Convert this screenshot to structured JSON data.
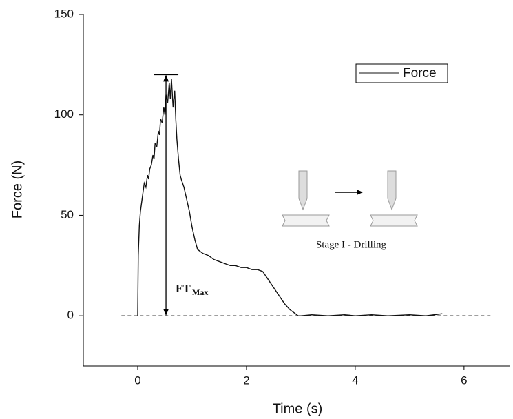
{
  "chart_data": {
    "type": "line",
    "xlabel": "Time (s)",
    "ylabel": "Force (N)",
    "x": [
      0,
      0.01,
      0.03,
      0.05,
      0.08,
      0.1,
      0.12,
      0.15,
      0.18,
      0.2,
      0.22,
      0.25,
      0.28,
      0.3,
      0.32,
      0.35,
      0.38,
      0.4,
      0.42,
      0.45,
      0.48,
      0.5,
      0.52,
      0.55,
      0.58,
      0.6,
      0.62,
      0.65,
      0.68,
      0.7,
      0.72,
      0.75,
      0.78,
      0.8,
      0.85,
      0.9,
      0.95,
      1.0,
      1.05,
      1.1,
      1.2,
      1.3,
      1.4,
      1.5,
      1.6,
      1.7,
      1.8,
      1.9,
      2.0,
      2.1,
      2.2,
      2.3,
      2.35,
      2.4,
      2.5,
      2.6,
      2.7,
      2.8,
      2.9,
      2.95,
      3.0,
      3.2,
      3.5,
      3.8,
      4.0,
      4.3,
      4.6,
      5.0,
      5.3,
      5.6
    ],
    "series": [
      {
        "name": "Force",
        "color": "#111111",
        "values": [
          0,
          30,
          45,
          52,
          58,
          62,
          66,
          64,
          70,
          68,
          73,
          75,
          80,
          78,
          86,
          84,
          92,
          90,
          98,
          96,
          104,
          100,
          110,
          106,
          116,
          108,
          118,
          104,
          112,
          98,
          88,
          78,
          70,
          68,
          64,
          58,
          52,
          44,
          38,
          33,
          31,
          30,
          28,
          27,
          26,
          25,
          25,
          24,
          24,
          23,
          23,
          22,
          20,
          18,
          14,
          10,
          6,
          3,
          1,
          0,
          0,
          0.5,
          0,
          0.5,
          0,
          0.5,
          0,
          0.5,
          0,
          1
        ]
      }
    ],
    "xlim": [
      -1,
      6.85
    ],
    "ylim": [
      -25,
      150
    ],
    "xticks": [
      0,
      2,
      4,
      6
    ],
    "yticks": [
      0,
      50,
      100,
      150
    ],
    "reference_line": 0,
    "legend": "top right",
    "annotation": {
      "text": "FT",
      "subscript": "Max",
      "x": 0.52,
      "value": 120
    },
    "inset_label": "Stage I - Drilling"
  }
}
